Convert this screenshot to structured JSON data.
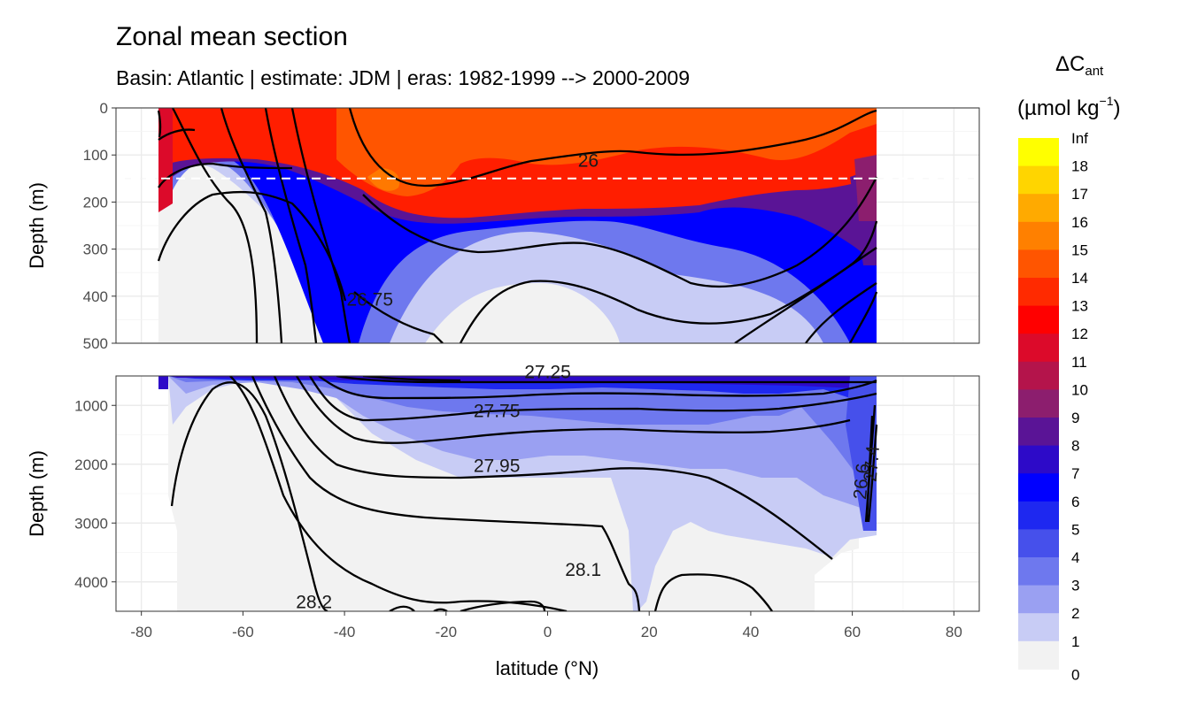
{
  "title": "Zonal mean section",
  "subtitle": "Basin: Atlantic | estimate: JDM  | eras: 1982-1999 --> 2000-2009",
  "chart_data": {
    "type": "heatmap",
    "title": "Zonal mean section",
    "subtitle": "Basin: Atlantic | estimate: JDM  | eras: 1982-1999 --> 2000-2009",
    "xlabel": "latitude (°N)",
    "ylabel": "Depth (m)",
    "xlim": [
      -85,
      85
    ],
    "x_ticks": [
      -80,
      -60,
      -40,
      -20,
      0,
      20,
      40,
      60,
      80
    ],
    "x_tick_labels": [
      "-80",
      "-60",
      "-40",
      "-20",
      "0",
      "20",
      "40",
      "60",
      "80"
    ],
    "panels": [
      {
        "name": "upper",
        "ylim": [
          0,
          500
        ],
        "y_ticks": [
          0,
          100,
          200,
          300,
          400,
          500
        ],
        "y_tick_labels": [
          "0",
          "100",
          "200",
          "300",
          "400",
          "500"
        ],
        "reference_depth": 150
      },
      {
        "name": "lower",
        "ylim": [
          500,
          4500
        ],
        "y_ticks": [
          1000,
          2000,
          3000,
          4000
        ],
        "y_tick_labels": [
          "1000",
          "2000",
          "3000",
          "4000"
        ]
      }
    ],
    "legend": {
      "title_main": "ΔC",
      "title_sub": "ant",
      "unit_main": "(µmol kg",
      "unit_sup": "−1",
      "unit_end": ")",
      "position": "right",
      "breaks": [
        "Inf",
        "18",
        "17",
        "16",
        "15",
        "14",
        "13",
        "12",
        "11",
        "10",
        "9",
        "8",
        "7",
        "6",
        "5",
        "4",
        "3",
        "2",
        "1",
        "0"
      ],
      "colors": [
        "#ffff00",
        "#ffd500",
        "#ffaa00",
        "#ff8000",
        "#ff5500",
        "#ff2a00",
        "#ff0000",
        "#dc0a2a",
        "#b4144b",
        "#8c1e6e",
        "#5a1496",
        "#2d0ac8",
        "#0000ff",
        "#1e28f0",
        "#4650eb",
        "#6e78ee",
        "#9aa0f2",
        "#c8ccf5",
        "#f2f2f2"
      ]
    },
    "contour_labels": [
      {
        "text": "26",
        "lat": 8,
        "depth": 125
      },
      {
        "text": "26.75",
        "lat": -35,
        "depth": 420
      },
      {
        "text": "27.25",
        "lat": 0,
        "depth": 540
      },
      {
        "text": "27.75",
        "lat": -10,
        "depth": 1200
      },
      {
        "text": "27.95",
        "lat": -10,
        "depth": 2130
      },
      {
        "text": "28.1",
        "lat": 7,
        "depth": 3900
      },
      {
        "text": "28.2",
        "lat": -46,
        "depth": 4450
      },
      {
        "text": "26.6",
        "lat": 63,
        "depth": 2300
      },
      {
        "text": "27.4",
        "lat": 65,
        "depth": 2000
      }
    ],
    "grid": true
  }
}
